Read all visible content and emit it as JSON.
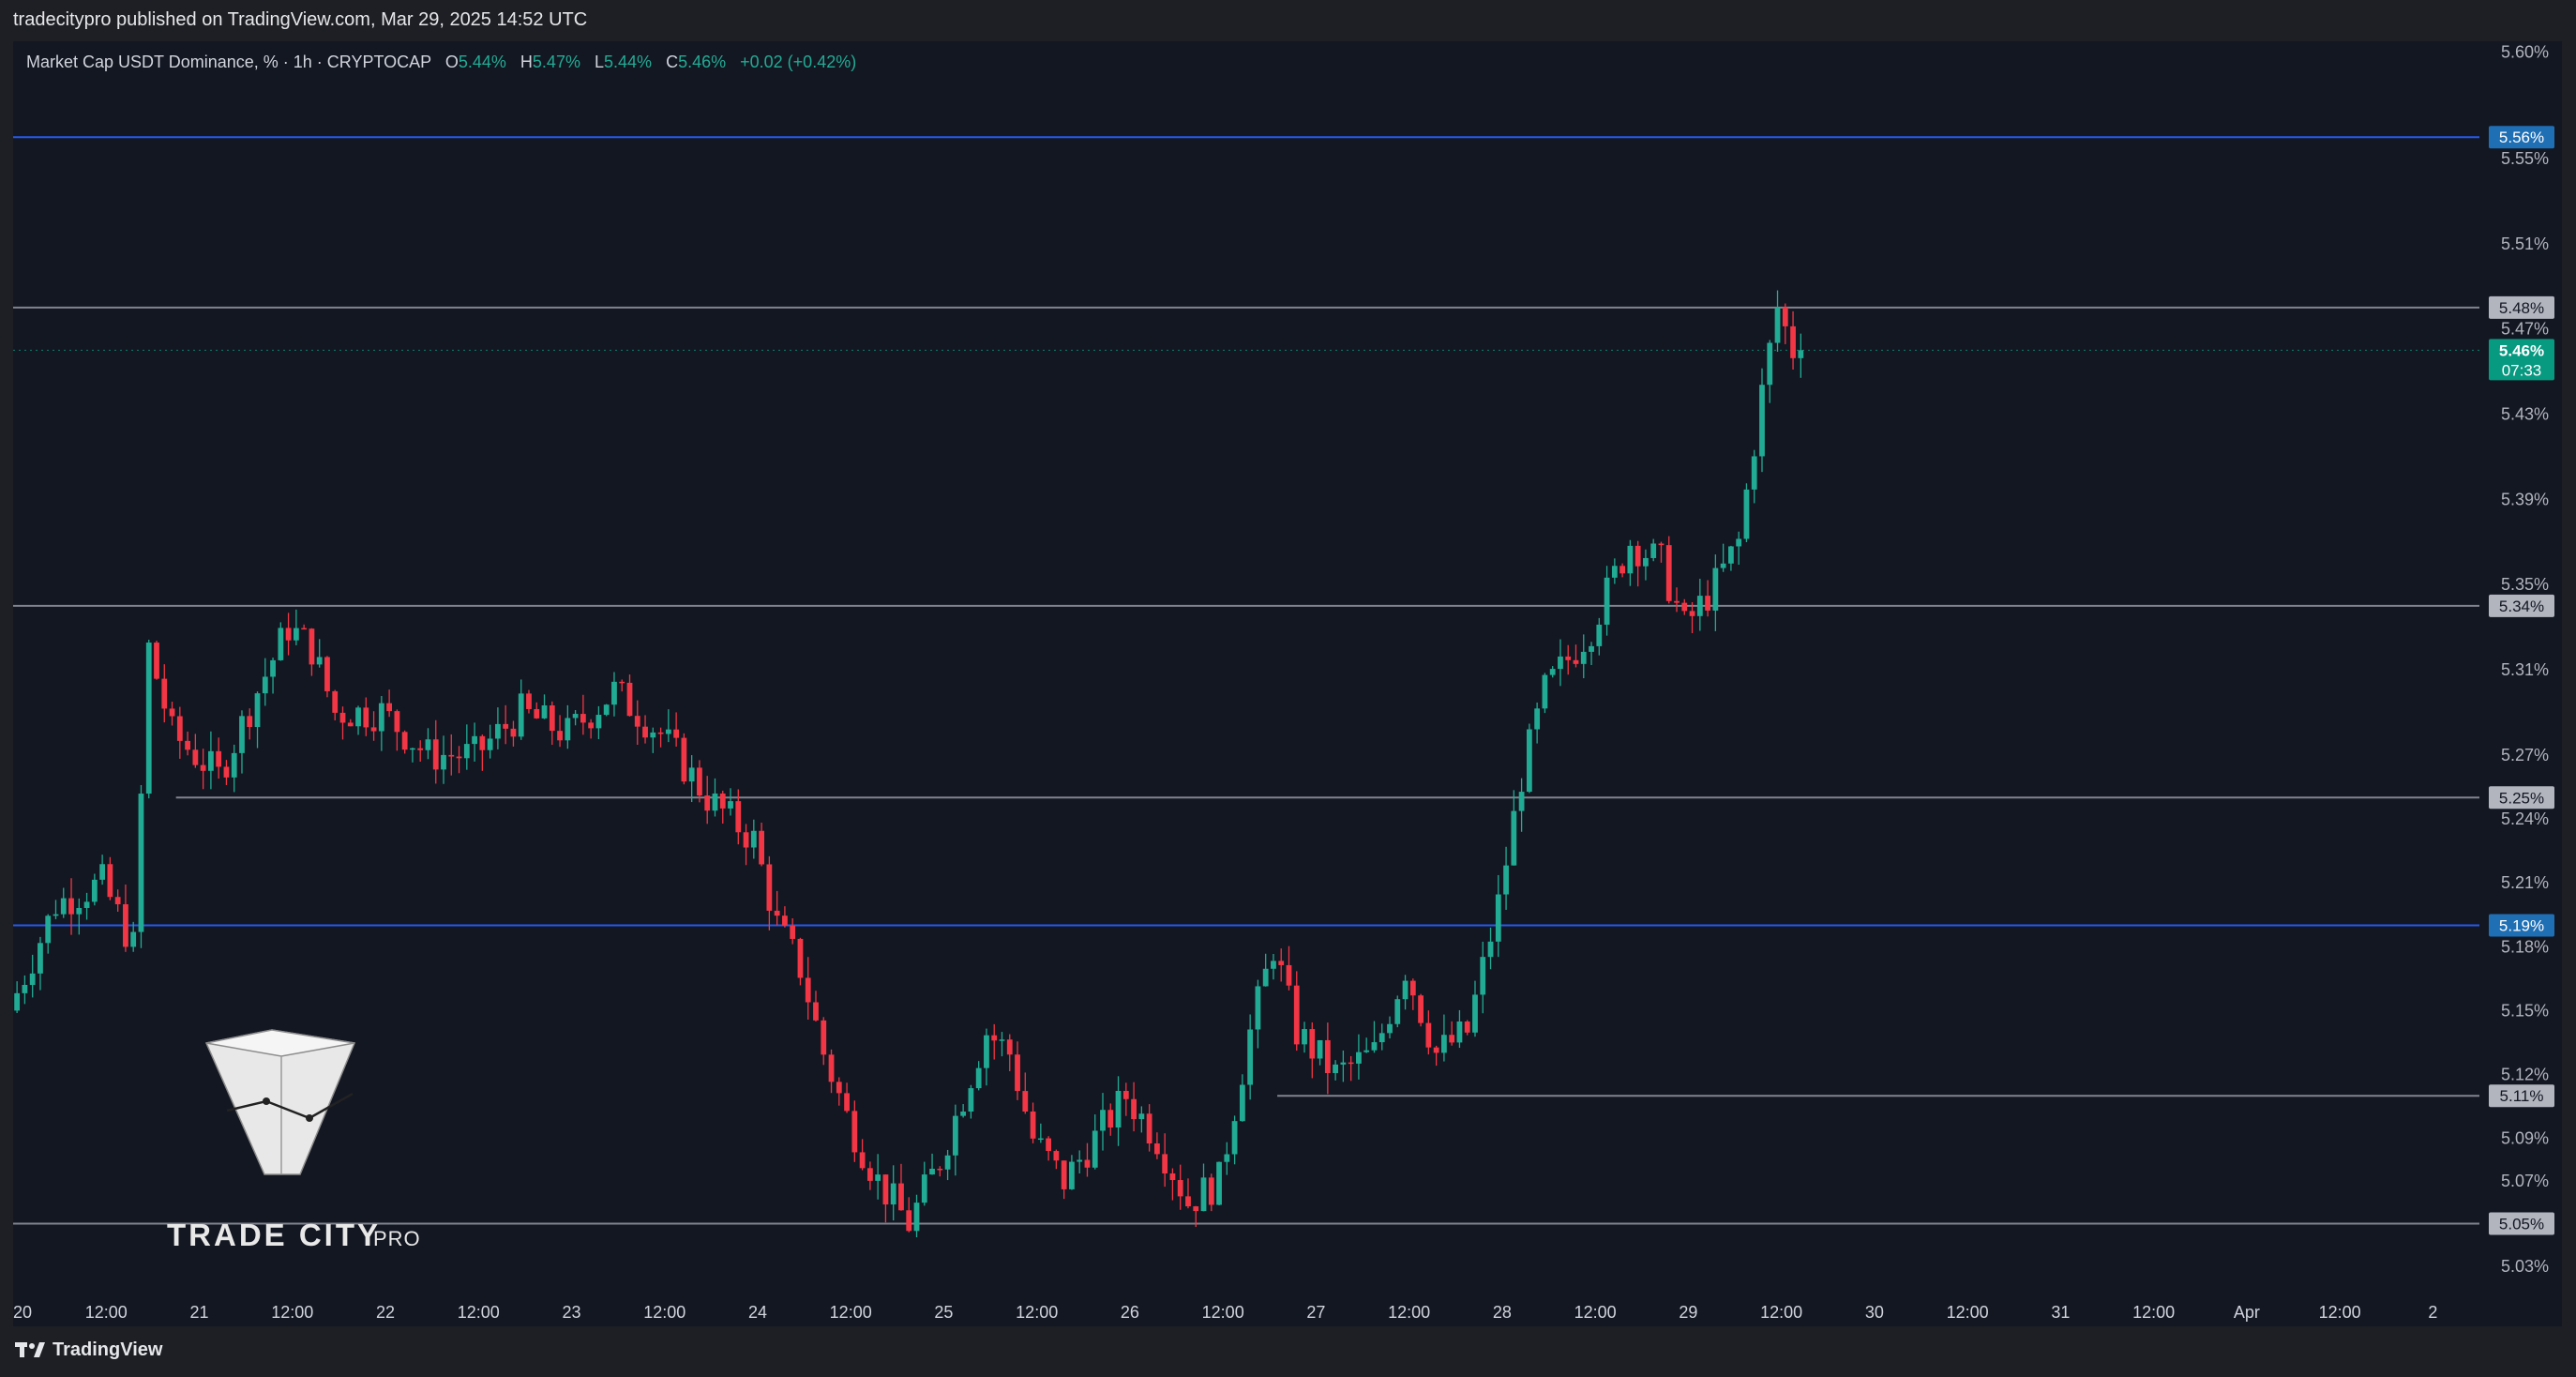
{
  "header": {
    "published": "tradecitypro published on TradingView.com, Mar 29, 2025 14:52 UTC"
  },
  "legend": {
    "symbol": "Market Cap USDT Dominance, % · 1h · CRYPTOCAP",
    "open_label": "O",
    "open": "5.44%",
    "high_label": "H",
    "high": "5.47%",
    "low_label": "L",
    "low": "5.44%",
    "close_label": "C",
    "close": "5.46%",
    "change": "+0.02 (+0.42%)"
  },
  "watermark": {
    "brand": "TRADE CITY",
    "suffix": "PRO"
  },
  "footer": {
    "logo_text": "TradingView"
  },
  "colors": {
    "background": "#131722",
    "up": "#22ab94",
    "down": "#f23645",
    "support_line": "#9598a1",
    "blue_line": "#2962ff",
    "blue_label": "#2962ff",
    "grey_label": "#b2b5be",
    "last_price_label": "#089981"
  },
  "chart_data": {
    "type": "candlestick",
    "title": "Market Cap USDT Dominance, % · 1h · CRYPTOCAP",
    "y_unit": "%",
    "ylim": [
      5.015,
      5.605
    ],
    "x_range": [
      "2025-03-20 00:00",
      "2025-04-02 06:00"
    ],
    "y_ticks": [
      "5.60%",
      "5.55%",
      "5.51%",
      "5.47%",
      "5.43%",
      "5.39%",
      "5.35%",
      "5.31%",
      "5.27%",
      "5.24%",
      "5.21%",
      "5.18%",
      "5.15%",
      "5.12%",
      "5.09%",
      "5.07%",
      "5.05%",
      "5.03%"
    ],
    "x_ticks": [
      {
        "t": "2025-03-20 00:00",
        "label": "20"
      },
      {
        "t": "2025-03-20 12:00",
        "label": "12:00"
      },
      {
        "t": "2025-03-21 00:00",
        "label": "21"
      },
      {
        "t": "2025-03-21 12:00",
        "label": "12:00"
      },
      {
        "t": "2025-03-22 00:00",
        "label": "22"
      },
      {
        "t": "2025-03-22 12:00",
        "label": "12:00"
      },
      {
        "t": "2025-03-23 00:00",
        "label": "23"
      },
      {
        "t": "2025-03-23 12:00",
        "label": "12:00"
      },
      {
        "t": "2025-03-24 00:00",
        "label": "24"
      },
      {
        "t": "2025-03-24 12:00",
        "label": "12:00"
      },
      {
        "t": "2025-03-25 00:00",
        "label": "25"
      },
      {
        "t": "2025-03-25 12:00",
        "label": "12:00"
      },
      {
        "t": "2025-03-26 00:00",
        "label": "26"
      },
      {
        "t": "2025-03-26 12:00",
        "label": "12:00"
      },
      {
        "t": "2025-03-27 00:00",
        "label": "27"
      },
      {
        "t": "2025-03-27 12:00",
        "label": "12:00"
      },
      {
        "t": "2025-03-28 00:00",
        "label": "28"
      },
      {
        "t": "2025-03-28 12:00",
        "label": "12:00"
      },
      {
        "t": "2025-03-29 00:00",
        "label": "29"
      },
      {
        "t": "2025-03-29 12:00",
        "label": "12:00"
      },
      {
        "t": "2025-03-30 00:00",
        "label": "30"
      },
      {
        "t": "2025-03-30 12:00",
        "label": "12:00"
      },
      {
        "t": "2025-03-31 00:00",
        "label": "31"
      },
      {
        "t": "2025-03-31 12:00",
        "label": "12:00"
      },
      {
        "t": "2025-04-01 00:00",
        "label": "Apr"
      },
      {
        "t": "2025-04-01 12:00",
        "label": "12:00"
      },
      {
        "t": "2025-04-02 00:00",
        "label": "2"
      }
    ],
    "horizontal_levels": [
      {
        "value": 5.56,
        "label": "5.56%",
        "style": "blue",
        "from": "2025-03-20 00:00"
      },
      {
        "value": 5.48,
        "label": "5.48%",
        "style": "grey",
        "from": "2025-03-20 00:00"
      },
      {
        "value": 5.34,
        "label": "5.34%",
        "style": "grey",
        "from": "2025-03-20 00:00"
      },
      {
        "value": 5.25,
        "label": "5.25%",
        "style": "grey",
        "from": "2025-03-20 21:00"
      },
      {
        "value": 5.19,
        "label": "5.19%",
        "style": "blue",
        "from": "2025-03-20 00:00"
      },
      {
        "value": 5.11,
        "label": "5.11%",
        "style": "grey",
        "from": "2025-03-26 19:00"
      },
      {
        "value": 5.05,
        "label": "5.05%",
        "style": "grey",
        "from": "2025-03-20 00:00"
      }
    ],
    "last_price": {
      "value": 5.46,
      "label": "5.46%",
      "countdown": "07:33"
    },
    "key_points": [
      [
        "2025-03-20 00:00",
        5.15
      ],
      [
        "2025-03-20 06:00",
        5.2
      ],
      [
        "2025-03-20 12:00",
        5.21
      ],
      [
        "2025-03-20 16:00",
        5.18
      ],
      [
        "2025-03-20 18:00",
        5.32
      ],
      [
        "2025-03-20 21:00",
        5.28
      ],
      [
        "2025-03-21 00:00",
        5.27
      ],
      [
        "2025-03-21 03:00",
        5.26
      ],
      [
        "2025-03-21 08:00",
        5.3
      ],
      [
        "2025-03-21 12:00",
        5.33
      ],
      [
        "2025-03-21 15:00",
        5.32
      ],
      [
        "2025-03-21 18:00",
        5.29
      ],
      [
        "2025-03-22 00:00",
        5.29
      ],
      [
        "2025-03-22 06:00",
        5.27
      ],
      [
        "2025-03-22 12:00",
        5.27
      ],
      [
        "2025-03-22 18:00",
        5.29
      ],
      [
        "2025-03-23 00:00",
        5.28
      ],
      [
        "2025-03-23 06:00",
        5.3
      ],
      [
        "2025-03-23 12:00",
        5.28
      ],
      [
        "2025-03-23 18:00",
        5.25
      ],
      [
        "2025-03-24 00:00",
        5.23
      ],
      [
        "2025-03-24 03:00",
        5.19
      ],
      [
        "2025-03-24 06:00",
        5.17
      ],
      [
        "2025-03-24 09:00",
        5.13
      ],
      [
        "2025-03-24 12:00",
        5.1
      ],
      [
        "2025-03-24 16:00",
        5.07
      ],
      [
        "2025-03-24 20:00",
        5.05
      ],
      [
        "2025-03-25 00:00",
        5.08
      ],
      [
        "2025-03-25 06:00",
        5.14
      ],
      [
        "2025-03-25 09:00",
        5.13
      ],
      [
        "2025-03-25 12:00",
        5.09
      ],
      [
        "2025-03-25 16:00",
        5.07
      ],
      [
        "2025-03-25 20:00",
        5.09
      ],
      [
        "2025-03-26 00:00",
        5.11
      ],
      [
        "2025-03-26 04:00",
        5.09
      ],
      [
        "2025-03-26 08:00",
        5.06
      ],
      [
        "2025-03-26 12:00",
        5.07
      ],
      [
        "2025-03-26 16:00",
        5.14
      ],
      [
        "2025-03-26 19:00",
        5.18
      ],
      [
        "2025-03-26 22:00",
        5.14
      ],
      [
        "2025-03-27 03:00",
        5.12
      ],
      [
        "2025-03-27 08:00",
        5.13
      ],
      [
        "2025-03-27 12:00",
        5.17
      ],
      [
        "2025-03-27 16:00",
        5.13
      ],
      [
        "2025-03-27 20:00",
        5.14
      ],
      [
        "2025-03-28 00:00",
        5.2
      ],
      [
        "2025-03-28 03:00",
        5.26
      ],
      [
        "2025-03-28 06:00",
        5.3
      ],
      [
        "2025-03-28 12:00",
        5.33
      ],
      [
        "2025-03-28 17:00",
        5.37
      ],
      [
        "2025-03-28 21:00",
        5.36
      ],
      [
        "2025-03-29 00:00",
        5.33
      ],
      [
        "2025-03-29 04:00",
        5.35
      ],
      [
        "2025-03-29 07:00",
        5.37
      ],
      [
        "2025-03-29 10:00",
        5.44
      ],
      [
        "2025-03-29 12:00",
        5.48
      ],
      [
        "2025-03-29 14:00",
        5.46
      ]
    ]
  }
}
